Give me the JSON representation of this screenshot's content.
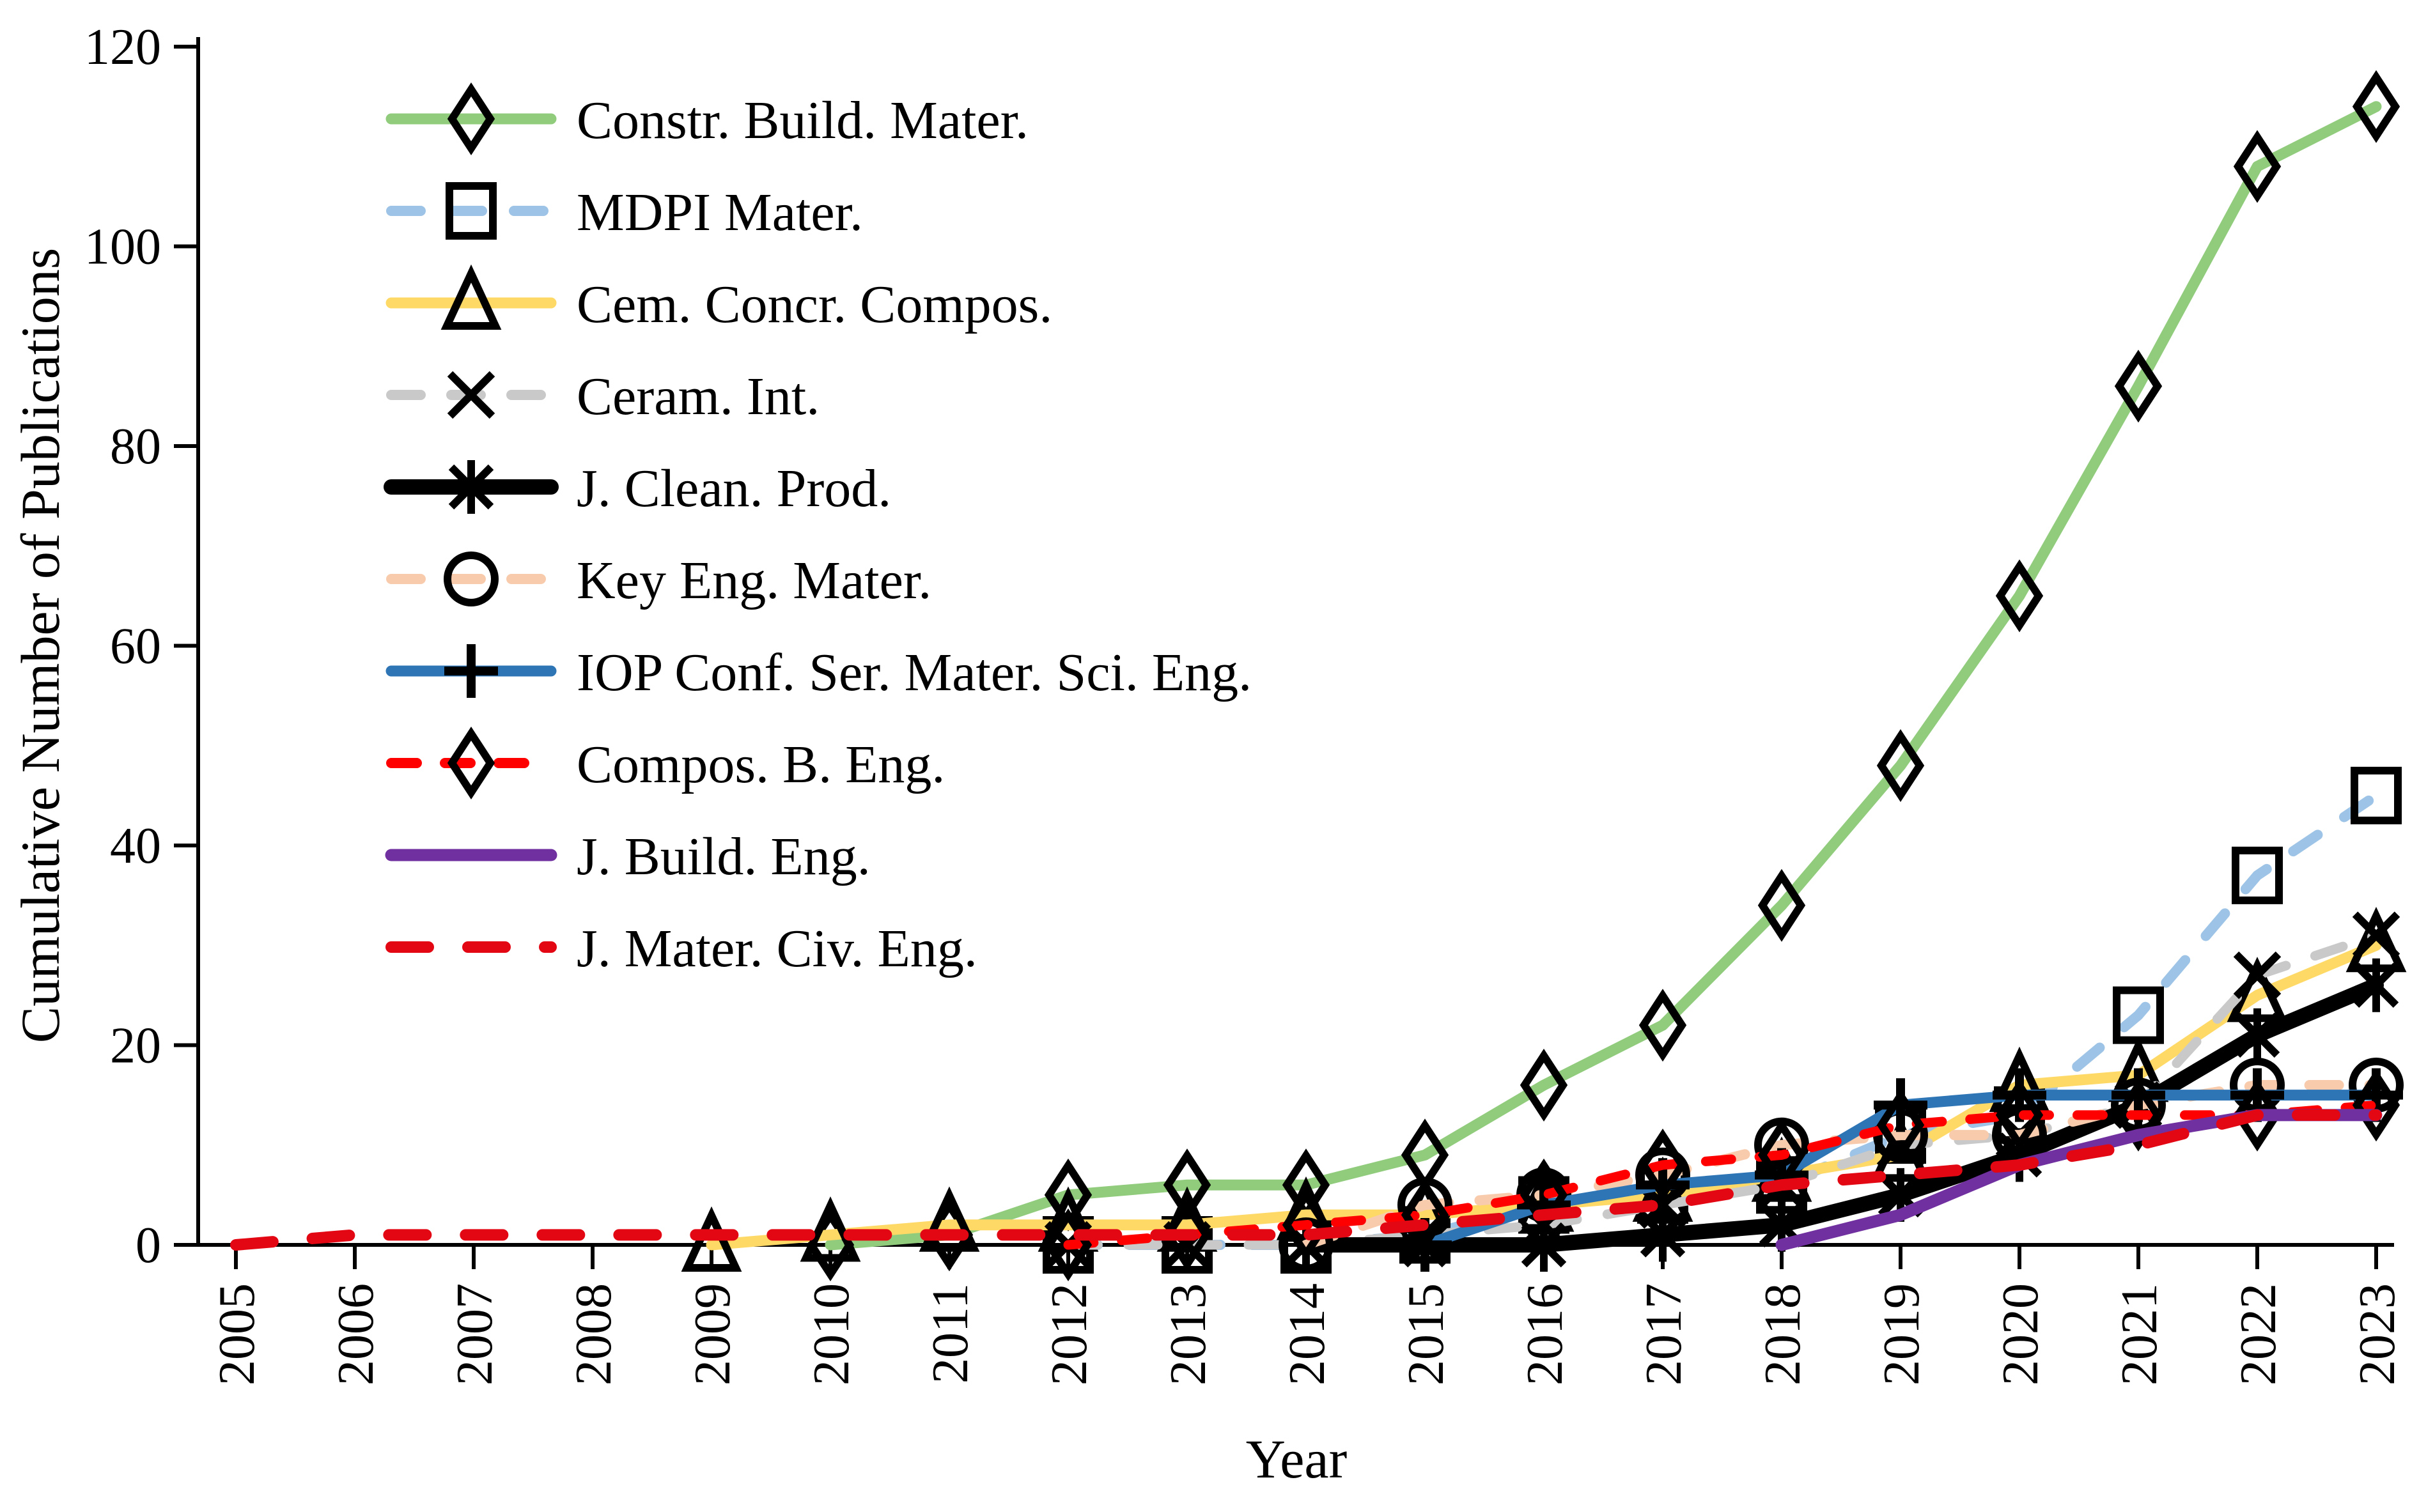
{
  "chart_data": {
    "type": "line",
    "title": "",
    "xlabel": "Year",
    "ylabel": "Cumulative Number of Publications",
    "x": [
      2005,
      2006,
      2007,
      2008,
      2009,
      2010,
      2011,
      2012,
      2013,
      2014,
      2015,
      2016,
      2017,
      2018,
      2019,
      2020,
      2021,
      2022,
      2023
    ],
    "ylim": [
      0,
      120
    ],
    "yticks": [
      0,
      20,
      40,
      60,
      80,
      100,
      120
    ],
    "grid": false,
    "legend_position": "upper-left-inside",
    "axis_color": "#000000",
    "background_color": "#ffffff",
    "series": [
      {
        "name": "Constr. Build. Mater.",
        "color": "#90CC7C",
        "line": "solid",
        "width": 17,
        "dash": null,
        "marker": "diamond",
        "values": [
          null,
          null,
          null,
          null,
          null,
          0,
          1,
          5,
          6,
          6,
          9,
          16,
          22,
          34,
          48,
          65,
          86,
          108,
          114
        ]
      },
      {
        "name": "MDPI Mater.",
        "color": "#9DC3E6",
        "line": "dashed",
        "width": 16,
        "dash": "46 50",
        "marker": "square",
        "values": [
          null,
          null,
          null,
          null,
          null,
          null,
          null,
          0,
          0,
          0,
          1,
          4,
          5,
          6,
          11,
          13,
          23,
          37,
          45
        ]
      },
      {
        "name": "Cem. Concr. Compos.",
        "color": "#FFD966",
        "line": "solid",
        "width": 17,
        "dash": null,
        "marker": "triangle",
        "values": [
          null,
          null,
          null,
          null,
          0,
          1,
          2,
          2,
          2,
          3,
          3,
          4,
          5,
          7,
          9,
          16,
          17,
          25,
          30
        ]
      },
      {
        "name": "Ceram. Int.",
        "color": "#C9C9C9",
        "line": "dashed",
        "width": 15,
        "dash": "46 48",
        "marker": "x",
        "values": [
          null,
          null,
          null,
          null,
          null,
          null,
          null,
          0,
          0,
          0,
          1,
          2,
          4,
          6,
          10,
          11,
          14,
          27,
          31
        ]
      },
      {
        "name": "J. Clean. Prod.",
        "color": "#000000",
        "line": "solid",
        "width": 24,
        "dash": null,
        "marker": "asterisk",
        "values": [
          null,
          null,
          null,
          null,
          null,
          null,
          null,
          null,
          null,
          0,
          0,
          0,
          1,
          2,
          5,
          9,
          14,
          21,
          26
        ]
      },
      {
        "name": "Key Eng. Mater.",
        "color": "#F8CBAD",
        "line": "dashed",
        "width": 16,
        "dash": "46 48",
        "marker": "circle",
        "values": [
          null,
          null,
          null,
          null,
          null,
          null,
          null,
          null,
          null,
          0,
          4,
          5,
          7,
          10,
          11,
          11,
          14,
          16,
          16
        ]
      },
      {
        "name": "IOP Conf. Ser. Mater. Sci. Eng.",
        "color": "#2E75B6",
        "line": "solid",
        "width": 17,
        "dash": null,
        "marker": "plus",
        "values": [
          null,
          null,
          null,
          null,
          null,
          null,
          null,
          null,
          null,
          null,
          0,
          4,
          6,
          7,
          14,
          15,
          15,
          15,
          15
        ]
      },
      {
        "name": "Compos. B. Eng.",
        "color": "#FF0000",
        "line": "dashed",
        "width": 15,
        "dash": "40 44",
        "marker": "diamond",
        "values": [
          null,
          null,
          null,
          null,
          null,
          null,
          null,
          0,
          1,
          2,
          3,
          5,
          8,
          9,
          12,
          13,
          13,
          13,
          14
        ]
      },
      {
        "name": "J. Build. Eng.",
        "color": "#7030A0",
        "line": "solid",
        "width": 19,
        "dash": null,
        "marker": "none",
        "values": [
          null,
          null,
          null,
          null,
          null,
          null,
          null,
          null,
          null,
          null,
          null,
          null,
          null,
          0,
          3,
          8,
          11,
          13,
          13
        ]
      },
      {
        "name": "J. Mater. Civ. Eng.",
        "color": "#E30613",
        "line": "dashed",
        "width": 18,
        "dash": "58 62",
        "marker": "none",
        "values": [
          0,
          1,
          1,
          1,
          1,
          1,
          1,
          1,
          1,
          1,
          2,
          3,
          4,
          6,
          7,
          8,
          10,
          13,
          13
        ]
      }
    ]
  }
}
